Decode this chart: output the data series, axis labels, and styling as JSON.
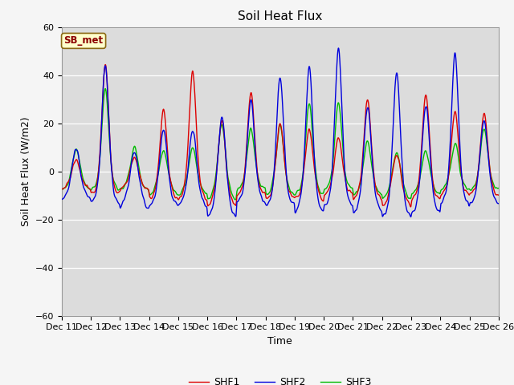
{
  "title": "Soil Heat Flux",
  "ylabel": "Soil Heat Flux (W/m2)",
  "xlabel": "Time",
  "ylim": [
    -60,
    60
  ],
  "yticks": [
    -60,
    -40,
    -20,
    0,
    20,
    40,
    60
  ],
  "colors": {
    "SHF1": "#dd0000",
    "SHF2": "#0000dd",
    "SHF3": "#00bb00"
  },
  "legend_label": "SB_met",
  "ax_bg_color": "#dcdcdc",
  "fig_bg_color": "#f5f5f5",
  "linewidth": 1.0,
  "x_tick_labels": [
    "Dec 11",
    "Dec 12",
    "Dec 13",
    "Dec 14",
    "Dec 15",
    "Dec 16",
    "Dec 17",
    "Dec 18",
    "Dec 19",
    "Dec 20",
    "Dec 21",
    "Dec 22",
    "Dec 23",
    "Dec 24",
    "Dec 25",
    "Dec 26"
  ],
  "n_days": 15,
  "pts_per_day": 144,
  "title_fontsize": 11,
  "label_fontsize": 9,
  "tick_fontsize": 8
}
